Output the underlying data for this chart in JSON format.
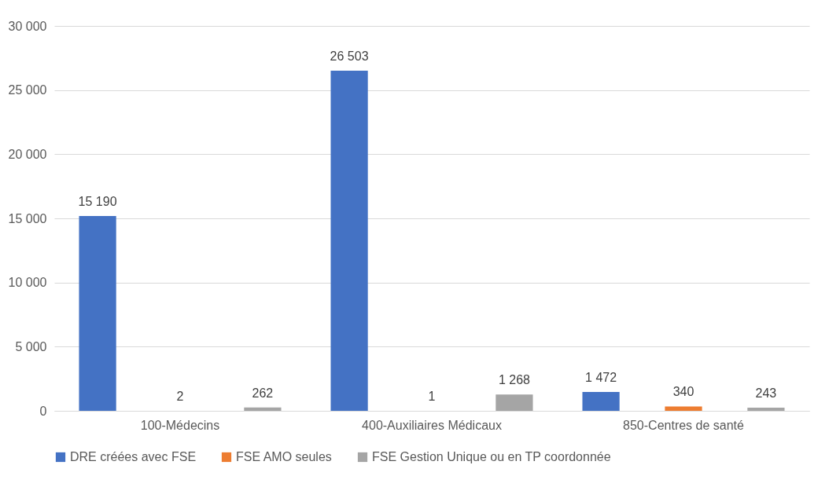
{
  "chart_data": {
    "type": "bar",
    "categories": [
      "100-Médecins",
      "400-Auxiliaires Médicaux",
      "850-Centres de santé"
    ],
    "series": [
      {
        "name": "DRE créées avec FSE",
        "color": "#4472c4",
        "values": [
          15190,
          26503,
          1472
        ],
        "value_labels": [
          "15 190",
          "26 503",
          "1 472"
        ]
      },
      {
        "name": "FSE AMO seules",
        "color": "#ed7d31",
        "values": [
          2,
          1,
          340
        ],
        "value_labels": [
          "2",
          "1",
          "340"
        ]
      },
      {
        "name": "FSE Gestion Unique ou en TP coordonnée",
        "color": "#a5a5a5",
        "values": [
          262,
          1268,
          243
        ],
        "value_labels": [
          "262",
          "1 268",
          "243"
        ]
      }
    ],
    "ylim": [
      0,
      30000
    ],
    "yticks": [
      {
        "value": 0,
        "label": "0"
      },
      {
        "value": 5000,
        "label": "5 000"
      },
      {
        "value": 10000,
        "label": "10 000"
      },
      {
        "value": 15000,
        "label": "15 000"
      },
      {
        "value": 20000,
        "label": "20 000"
      },
      {
        "value": 25000,
        "label": "25 000"
      },
      {
        "value": 30000,
        "label": "30 000"
      }
    ],
    "grid": "y",
    "legend": "bottom"
  }
}
